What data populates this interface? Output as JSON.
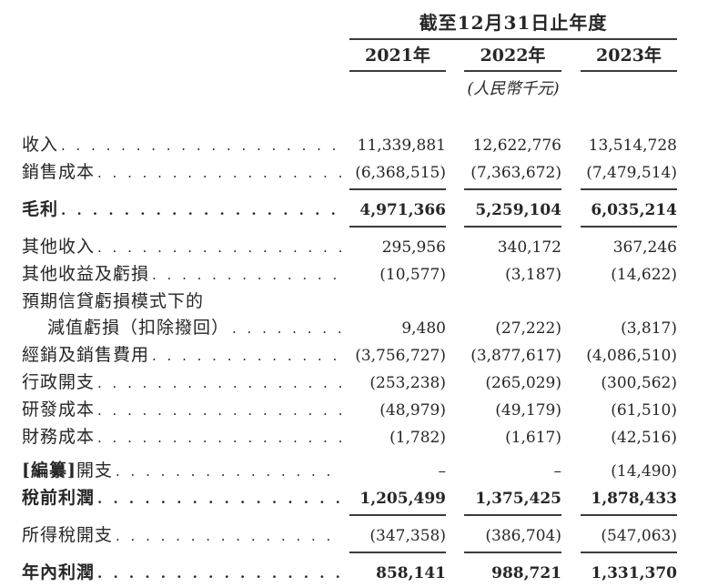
{
  "colors": {
    "text": "#262626",
    "rule": "#3b3b3b",
    "background": "#ffffff"
  },
  "table": {
    "period_header": "截至12月31日止年度",
    "year_columns": [
      "2021年",
      "2022年",
      "2023年"
    ],
    "unit_note": "(人民幣千元)",
    "leader_unit": ". ",
    "nil_symbol": "–",
    "rows": [
      {
        "label": "收入",
        "dots": true,
        "values": [
          "11,339,881",
          "12,622,776",
          "13,514,728"
        ]
      },
      {
        "label": "銷售成本",
        "dots": true,
        "rule_below": true,
        "values": [
          "(6,368,515)",
          "(7,363,672)",
          "(7,479,514)"
        ]
      },
      {
        "label": "毛利",
        "dots": true,
        "bold": true,
        "rule_below": true,
        "gap_before": true,
        "values": [
          "4,971,366",
          "5,259,104",
          "6,035,214"
        ]
      },
      {
        "label": "其他收入",
        "dots": true,
        "gap_before": true,
        "values": [
          "295,956",
          "340,172",
          "367,246"
        ]
      },
      {
        "label": "其他收益及虧損",
        "dots": true,
        "values": [
          "(10,577)",
          "(3,187)",
          "(14,622)"
        ]
      },
      {
        "label": "預期信貸虧損模式下的",
        "dots": false,
        "values": [
          "",
          "",
          ""
        ]
      },
      {
        "label": "減值虧損（扣除撥回）",
        "dots": true,
        "indent": true,
        "values": [
          "9,480",
          "(27,222)",
          "(3,817)"
        ]
      },
      {
        "label": "經銷及銷售費用",
        "dots": true,
        "values": [
          "(3,756,727)",
          "(3,877,617)",
          "(4,086,510)"
        ]
      },
      {
        "label": "行政開支",
        "dots": true,
        "values": [
          "(253,238)",
          "(265,029)",
          "(300,562)"
        ]
      },
      {
        "label": "研發成本",
        "dots": true,
        "values": [
          "(48,979)",
          "(49,179)",
          "(61,510)"
        ]
      },
      {
        "label": "財務成本",
        "dots": true,
        "values": [
          "(1,782)",
          "(1,617)",
          "(42,516)"
        ]
      },
      {
        "label_bold_part": "[編纂]",
        "label": "開支",
        "dots": true,
        "gap_before": true,
        "values": [
          "–",
          "–",
          "(14,490)"
        ]
      },
      {
        "label": "稅前利潤",
        "dots": true,
        "bold": true,
        "rule_below": true,
        "values": [
          "1,205,499",
          "1,375,425",
          "1,878,433"
        ]
      },
      {
        "label": "所得稅開支",
        "dots": true,
        "rule_below": true,
        "gap_before": true,
        "values": [
          "(347,358)",
          "(386,704)",
          "(547,063)"
        ]
      },
      {
        "label": "年內利潤",
        "dots": true,
        "bold": true,
        "double_rule_below": true,
        "gap_before": true,
        "values": [
          "858,141",
          "988,721",
          "1,331,370"
        ]
      }
    ]
  }
}
